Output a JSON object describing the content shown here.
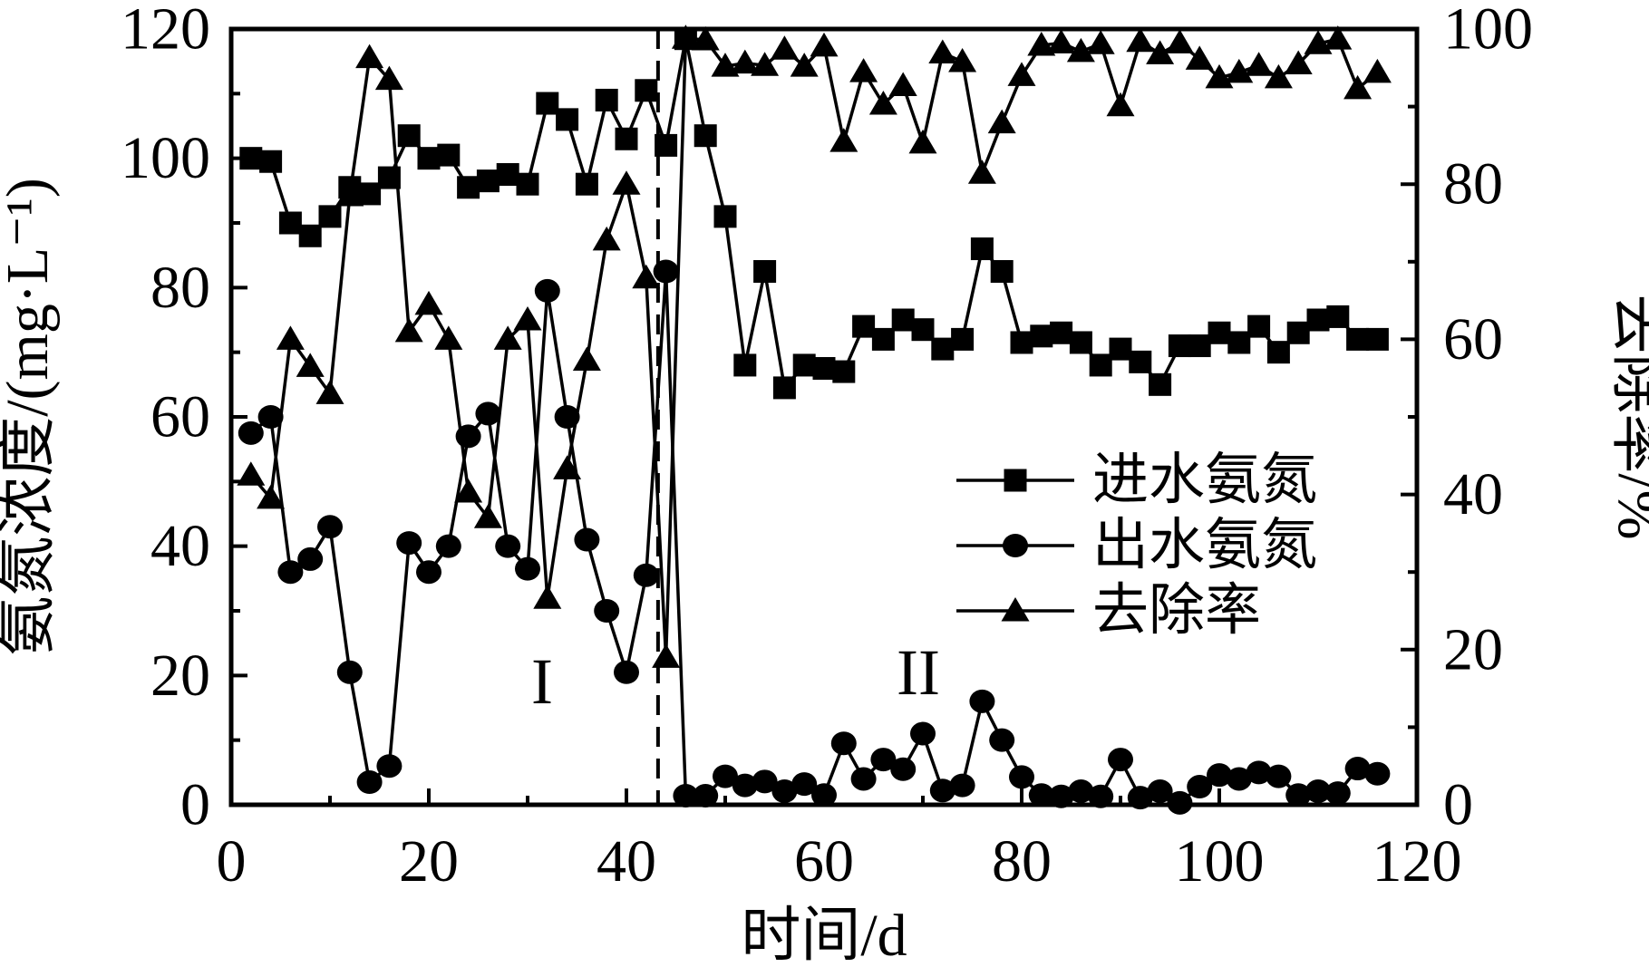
{
  "figure": {
    "background_color": "#ffffff",
    "ink_color": "#000000"
  },
  "axes": {
    "x": {
      "label": "时间/d",
      "min": 0,
      "max": 120,
      "major_tick_step": 20,
      "minor_tick_step": 10,
      "tick_labels": [
        "0",
        "20",
        "40",
        "60",
        "80",
        "100",
        "120"
      ]
    },
    "y_left": {
      "label": "氨氮浓度/(mg·L⁻¹)",
      "min": 0,
      "max": 120,
      "major_tick_step": 20,
      "minor_tick_step": 10,
      "tick_labels": [
        "0",
        "20",
        "40",
        "60",
        "80",
        "100",
        "120"
      ]
    },
    "y_right": {
      "label": "去除率/%",
      "min": 0,
      "max": 100,
      "major_tick_step": 20,
      "minor_tick_step": 10,
      "tick_labels": [
        "0",
        "20",
        "40",
        "60",
        "80",
        "100"
      ]
    }
  },
  "legend": {
    "position": "center-right",
    "items": [
      {
        "label": "进水氨氮",
        "marker": "square"
      },
      {
        "label": "出水氨氮",
        "marker": "circle"
      },
      {
        "label": "去除率",
        "marker": "triangle"
      }
    ]
  },
  "annotations": {
    "phase_1": "I",
    "phase_1_pos": {
      "x_day": 31.5,
      "y_left": 19
    },
    "phase_2": "II",
    "phase_2_pos": {
      "x_day": 69.5,
      "y_left": 20.5
    },
    "divider_x_day": 43.2,
    "divider_style": "vertical dashed line"
  },
  "chart_data": {
    "type": "line",
    "title": "",
    "xlabel": "时间/d",
    "ylabel_left": "氨氮浓度/(mg·L⁻¹)",
    "ylabel_right": "去除率/%",
    "xlim": [
      0,
      120
    ],
    "ylim_left": [
      0,
      120
    ],
    "ylim_right": [
      0,
      100
    ],
    "grid": false,
    "legend_position": "center-right",
    "x": [
      2,
      4,
      6,
      8,
      10,
      12,
      14,
      16,
      18,
      20,
      22,
      24,
      26,
      28,
      30,
      32,
      34,
      36,
      38,
      40,
      42,
      44,
      46,
      48,
      50,
      52,
      54,
      56,
      58,
      60,
      62,
      64,
      66,
      68,
      70,
      72,
      74,
      76,
      78,
      80,
      82,
      84,
      86,
      88,
      90,
      92,
      94,
      96,
      98,
      100,
      102,
      104,
      106,
      108,
      110,
      112,
      114,
      116
    ],
    "series": [
      {
        "name": "进水氨氮",
        "marker": "square",
        "axis": "left",
        "values": [
          100,
          99.5,
          90,
          88,
          91,
          95.5,
          94.5,
          97,
          103.5,
          100,
          100.5,
          95.5,
          96.5,
          97.5,
          96,
          108.5,
          106,
          96,
          109,
          103,
          110.5,
          102,
          118.5,
          103.5,
          91,
          68,
          82.5,
          64.5,
          68,
          67.5,
          67,
          74,
          72,
          75,
          73.5,
          70.5,
          72,
          86,
          82.5,
          71.5,
          72.5,
          73,
          71.5,
          68,
          70.5,
          68.5,
          65,
          71,
          71,
          73,
          71.5,
          74,
          70,
          73,
          75,
          75.5,
          72,
          72
        ]
      },
      {
        "name": "出水氨氮",
        "marker": "circle",
        "axis": "left",
        "values": [
          57.5,
          60,
          36,
          38,
          43,
          20.5,
          3.5,
          6,
          40.5,
          36,
          40,
          57,
          60.5,
          40,
          36.5,
          79.5,
          60,
          41,
          30,
          20.5,
          35.5,
          82.5,
          1.4,
          1.4,
          4.4,
          3,
          3.6,
          2.1,
          3.2,
          1.5,
          9.5,
          4,
          7,
          5.5,
          11,
          2.2,
          3,
          16,
          10,
          4.3,
          1.5,
          1.3,
          2.1,
          1.3,
          7,
          1.1,
          2.1,
          0.3,
          2.8,
          4.6,
          4,
          5,
          4.4,
          1.5,
          2.1,
          1.8,
          5.6,
          4.8
        ]
      },
      {
        "name": "去除率",
        "marker": "triangle",
        "axis": "right",
        "values": [
          42.5,
          39.5,
          60,
          56.5,
          53,
          78.5,
          96.3,
          93.5,
          61,
          64.5,
          60,
          40.3,
          37,
          60,
          62.5,
          26.6,
          43.3,
          57.3,
          72.8,
          80,
          67.9,
          19,
          98.8,
          98.6,
          95.2,
          95.6,
          95.3,
          97.4,
          95.2,
          97.8,
          85.5,
          94.5,
          90.3,
          92.7,
          85.3,
          96.9,
          95.8,
          81.4,
          87.9,
          94,
          97.9,
          98.2,
          97.1,
          98.1,
          90.1,
          98.4,
          96.8,
          98.2,
          96.1,
          93.7,
          94.4,
          95.3,
          93.7,
          95.5,
          98.1,
          98.7,
          92.3,
          94.4
        ]
      }
    ]
  }
}
